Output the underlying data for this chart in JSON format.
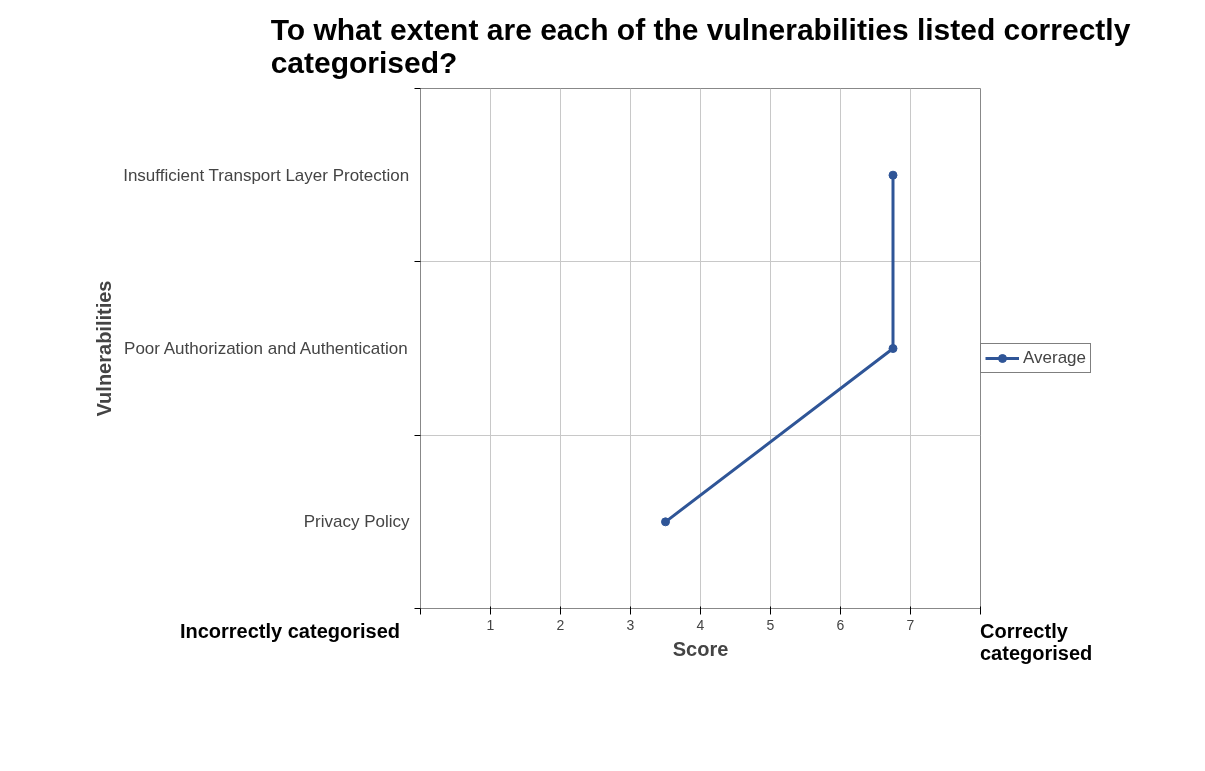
{
  "chart_data": {
    "type": "line",
    "title": "To what extent are each of the vulnerabilities listed correctly categorised?",
    "xlabel": "Score",
    "ylabel": "Vulnerabilities",
    "orientation": "horizontal",
    "categories": [
      "Insufficient Transport Layer Protection",
      "Poor Authorization and Authentication",
      "Privacy Policy"
    ],
    "series": [
      {
        "name": "Average",
        "color": "#2f5597",
        "values": [
          6.75,
          6.75,
          3.5
        ]
      }
    ],
    "xlim": [
      0,
      8
    ],
    "xticks": [
      {
        "value": 0,
        "label": null
      },
      1,
      2,
      3,
      4,
      5,
      6,
      7,
      {
        "value": 8,
        "label": null
      }
    ],
    "grid": true,
    "legend": "right",
    "marker": "circle",
    "line_style": "solid",
    "annotations": [
      "Incorrectly categorised",
      "Correctly categorised"
    ]
  }
}
